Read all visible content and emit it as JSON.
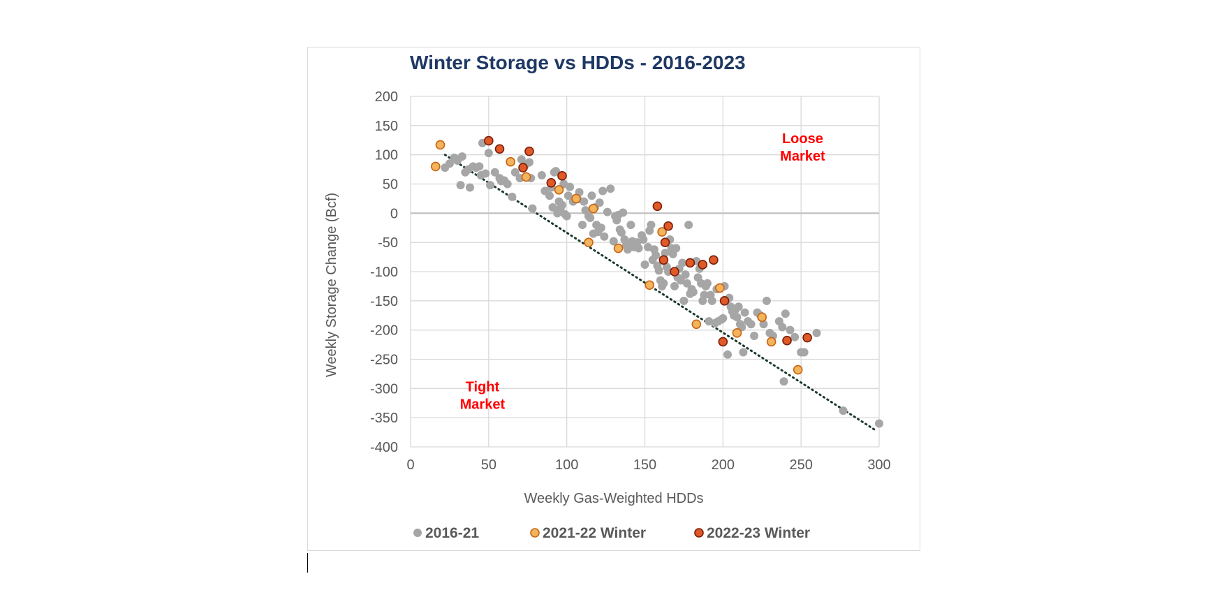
{
  "chart_data": {
    "type": "scatter",
    "title": "Winter Storage vs HDDs - 2016-2023",
    "xlabel": "Weekly Gas-Weighted HDDs",
    "ylabel": "Weekly Storage Change (Bcf)",
    "xlim": [
      0,
      300
    ],
    "ylim": [
      -400,
      200
    ],
    "xticks": [
      0,
      50,
      100,
      150,
      200,
      250,
      300
    ],
    "yticks": [
      200,
      150,
      100,
      50,
      0,
      -50,
      -100,
      -150,
      -200,
      -250,
      -300,
      -350,
      -400
    ],
    "grid": true,
    "legend_position": "bottom",
    "annotations": [
      {
        "lines": [
          "Loose",
          "Market"
        ],
        "x": 251,
        "y": 120
      },
      {
        "lines": [
          "Tight",
          "Market"
        ],
        "x": 46,
        "y": -305
      }
    ],
    "trendline": {
      "style": "dotted",
      "color": "#1a3a2a",
      "from": [
        22,
        100
      ],
      "to": [
        298,
        -372
      ]
    },
    "series": [
      {
        "name": "2016-21",
        "color": "#a6a6a6",
        "stroke": "#a6a6a6",
        "points": [
          [
            22,
            78
          ],
          [
            25,
            85
          ],
          [
            28,
            95
          ],
          [
            33,
            97
          ],
          [
            30,
            90
          ],
          [
            35,
            70
          ],
          [
            37,
            75
          ],
          [
            40,
            80
          ],
          [
            42,
            78
          ],
          [
            45,
            65
          ],
          [
            48,
            68
          ],
          [
            44,
            80
          ],
          [
            46,
            120
          ],
          [
            50,
            103
          ],
          [
            32,
            48
          ],
          [
            38,
            44
          ],
          [
            51,
            48
          ],
          [
            54,
            70
          ],
          [
            57,
            60
          ],
          [
            58,
            55
          ],
          [
            60,
            56
          ],
          [
            62,
            50
          ],
          [
            65,
            28
          ],
          [
            67,
            70
          ],
          [
            70,
            60
          ],
          [
            71,
            92
          ],
          [
            74,
            84
          ],
          [
            76,
            87
          ],
          [
            77,
            60
          ],
          [
            78,
            8
          ],
          [
            84,
            65
          ],
          [
            86,
            38
          ],
          [
            89,
            30
          ],
          [
            90,
            44
          ],
          [
            91,
            10
          ],
          [
            92,
            70
          ],
          [
            93,
            72
          ],
          [
            94,
            0
          ],
          [
            95,
            20
          ],
          [
            96,
            8
          ],
          [
            97,
            14
          ],
          [
            98,
            50
          ],
          [
            99,
            -2
          ],
          [
            100,
            -5
          ],
          [
            101,
            30
          ],
          [
            102,
            45
          ],
          [
            104,
            20
          ],
          [
            107,
            24
          ],
          [
            108,
            36
          ],
          [
            110,
            -20
          ],
          [
            111,
            20
          ],
          [
            112,
            5
          ],
          [
            114,
            -5
          ],
          [
            115,
            -8
          ],
          [
            116,
            30
          ],
          [
            117,
            -35
          ],
          [
            118,
            10
          ],
          [
            119,
            -20
          ],
          [
            120,
            -32
          ],
          [
            121,
            18
          ],
          [
            122,
            -25
          ],
          [
            123,
            38
          ],
          [
            124,
            -40
          ],
          [
            126,
            2
          ],
          [
            128,
            42
          ],
          [
            130,
            -48
          ],
          [
            131,
            -5
          ],
          [
            132,
            -12
          ],
          [
            133,
            -3
          ],
          [
            134,
            -28
          ],
          [
            135,
            -33
          ],
          [
            136,
            1
          ],
          [
            137,
            -45
          ],
          [
            138,
            -55
          ],
          [
            139,
            -62
          ],
          [
            140,
            -52
          ],
          [
            141,
            -20
          ],
          [
            142,
            -48
          ],
          [
            143,
            -58
          ],
          [
            145,
            -50
          ],
          [
            146,
            -60
          ],
          [
            148,
            -38
          ],
          [
            149,
            -45
          ],
          [
            150,
            -88
          ],
          [
            152,
            -58
          ],
          [
            153,
            -30
          ],
          [
            154,
            -20
          ],
          [
            155,
            -80
          ],
          [
            156,
            -62
          ],
          [
            157,
            -72
          ],
          [
            158,
            -90
          ],
          [
            159,
            -98
          ],
          [
            160,
            -115
          ],
          [
            161,
            -125
          ],
          [
            162,
            -120
          ],
          [
            163,
            -68
          ],
          [
            164,
            -92
          ],
          [
            165,
            -100
          ],
          [
            166,
            -45
          ],
          [
            167,
            -60
          ],
          [
            168,
            -70
          ],
          [
            169,
            -125
          ],
          [
            170,
            -60
          ],
          [
            171,
            -110
          ],
          [
            172,
            -95
          ],
          [
            173,
            -115
          ],
          [
            174,
            -85
          ],
          [
            175,
            -150
          ],
          [
            176,
            -105
          ],
          [
            177,
            -120
          ],
          [
            178,
            -20
          ],
          [
            179,
            -138
          ],
          [
            180,
            -130
          ],
          [
            181,
            -135
          ],
          [
            183,
            -82
          ],
          [
            184,
            -110
          ],
          [
            185,
            -95
          ],
          [
            186,
            -120
          ],
          [
            187,
            -150
          ],
          [
            188,
            -140
          ],
          [
            189,
            -125
          ],
          [
            190,
            -120
          ],
          [
            191,
            -185
          ],
          [
            192,
            -140
          ],
          [
            193,
            -150
          ],
          [
            195,
            -188
          ],
          [
            196,
            -130
          ],
          [
            197,
            -185
          ],
          [
            199,
            -182
          ],
          [
            200,
            -180
          ],
          [
            201,
            -125
          ],
          [
            202,
            -150
          ],
          [
            203,
            -242
          ],
          [
            204,
            -145
          ],
          [
            205,
            -160
          ],
          [
            206,
            -168
          ],
          [
            207,
            -175
          ],
          [
            208,
            -165
          ],
          [
            209,
            -178
          ],
          [
            210,
            -160
          ],
          [
            211,
            -190
          ],
          [
            212,
            -195
          ],
          [
            213,
            -238
          ],
          [
            214,
            -170
          ],
          [
            216,
            -185
          ],
          [
            218,
            -190
          ],
          [
            220,
            -210
          ],
          [
            222,
            -170
          ],
          [
            224,
            -175
          ],
          [
            226,
            -190
          ],
          [
            228,
            -150
          ],
          [
            230,
            -205
          ],
          [
            232,
            -210
          ],
          [
            236,
            -185
          ],
          [
            238,
            -195
          ],
          [
            239,
            -288
          ],
          [
            240,
            -172
          ],
          [
            243,
            -200
          ],
          [
            246,
            -212
          ],
          [
            250,
            -238
          ],
          [
            252,
            -238
          ],
          [
            260,
            -205
          ],
          [
            277,
            -338
          ],
          [
            300,
            -360
          ]
        ]
      },
      {
        "name": "2021-22 Winter",
        "color": "#f2b45c",
        "stroke": "#c86414",
        "points": [
          [
            16,
            80
          ],
          [
            19,
            117
          ],
          [
            64,
            88
          ],
          [
            74,
            62
          ],
          [
            95,
            40
          ],
          [
            106,
            25
          ],
          [
            117,
            8
          ],
          [
            114,
            -50
          ],
          [
            133,
            -60
          ],
          [
            153,
            -123
          ],
          [
            161,
            -32
          ],
          [
            183,
            -190
          ],
          [
            198,
            -128
          ],
          [
            209,
            -205
          ],
          [
            225,
            -178
          ],
          [
            231,
            -220
          ],
          [
            248,
            -268
          ]
        ]
      },
      {
        "name": "2022-23 Winter",
        "color": "#e05a28",
        "stroke": "#7a1e0a",
        "points": [
          [
            50,
            124
          ],
          [
            57,
            110
          ],
          [
            72,
            78
          ],
          [
            76,
            106
          ],
          [
            90,
            52
          ],
          [
            97,
            64
          ],
          [
            158,
            12
          ],
          [
            165,
            -22
          ],
          [
            163,
            -50
          ],
          [
            162,
            -80
          ],
          [
            169,
            -100
          ],
          [
            179,
            -85
          ],
          [
            187,
            -88
          ],
          [
            194,
            -80
          ],
          [
            201,
            -150
          ],
          [
            200,
            -220
          ],
          [
            241,
            -218
          ],
          [
            254,
            -213
          ]
        ]
      }
    ]
  }
}
